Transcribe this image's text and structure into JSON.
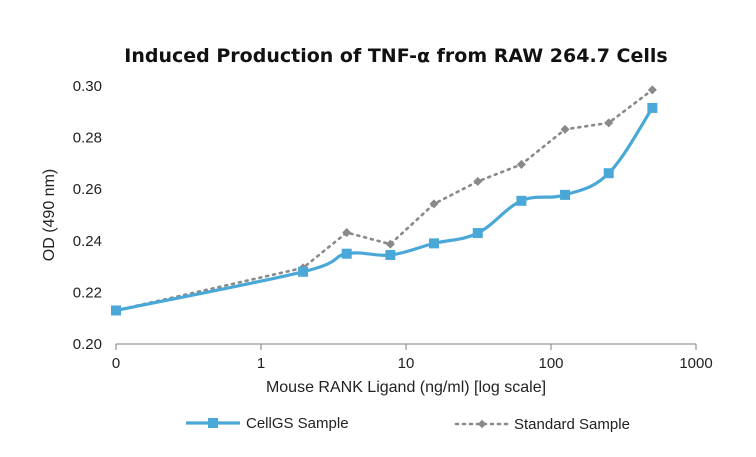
{
  "chart_data": {
    "type": "line",
    "title": "Induced Production of TNF-α from RAW 264.7 Cells",
    "xlabel": "Mouse RANK Ligand (ng/ml) [log scale]",
    "ylabel": "OD (490 nm)",
    "x_scale": "log",
    "x_tick_labels": [
      "0",
      "1",
      "10",
      "100",
      "1000"
    ],
    "y_tick_labels": [
      "0.20",
      "0.22",
      "0.24",
      "0.26",
      "0.28",
      "0.30"
    ],
    "ylim": [
      0.2,
      0.3
    ],
    "grid": false,
    "legend_position": "bottom",
    "series": [
      {
        "name": "CellGS Sample",
        "color": "#4aa8d8",
        "style": "solid",
        "marker": "square",
        "x": [
          "0",
          1.95,
          3.9,
          7.8,
          15.6,
          31.25,
          62.5,
          125,
          250,
          500
        ],
        "values": [
          0.213,
          0.228,
          0.235,
          0.2345,
          0.239,
          0.243,
          0.2555,
          0.2578,
          0.2662,
          0.2915
        ]
      },
      {
        "name": "Standard Sample",
        "color": "#8a8a8a",
        "style": "dotted",
        "marker": "diamond",
        "x": [
          "0",
          1.95,
          3.9,
          7.8,
          15.6,
          31.25,
          62.5,
          125,
          250,
          500
        ],
        "values": [
          0.213,
          0.2295,
          0.2432,
          0.2387,
          0.2543,
          0.263,
          0.2696,
          0.2832,
          0.2857,
          0.2985
        ]
      }
    ]
  }
}
